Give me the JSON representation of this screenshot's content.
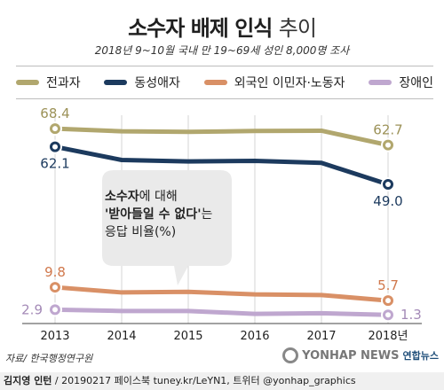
{
  "header": {
    "title_main": "소수자 배제 인식",
    "title_light": "추이",
    "subtitle": "2018년 9~10월 국내 만 19~69세 성인 8,000명 조사"
  },
  "annotation": {
    "part1_bold": "소수자",
    "part1_rest": "에 대해",
    "part2_bold": "'받아들일 수 없다'",
    "part2_rest": "는",
    "part3": "응답 비율(%)"
  },
  "source": "자료/ 한국행정연구원",
  "credit": {
    "author": "김지영 인턴",
    "rest": " / 20190217 페이스북 tuney.kr/LeYN1, 트위터 @yonhap_graphics"
  },
  "logo": {
    "brand": "YONHAP NEWS",
    "brand_kr": "연합뉴스"
  },
  "chart_data": {
    "type": "line",
    "title": "소수자 배제 인식 추이",
    "subtitle": "2018년 9~10월 국내 만 19~69세 성인 8,000명 조사",
    "x": [
      "2013",
      "2014",
      "2015",
      "2016",
      "2017",
      "2018년"
    ],
    "series": [
      {
        "name": "전과자",
        "color": "#b1a76e",
        "values": [
          68.4,
          67.5,
          67.3,
          67.6,
          67.7,
          62.7
        ],
        "labels": {
          "0": "68.4",
          "5": "62.7"
        }
      },
      {
        "name": "동성애자",
        "color": "#1c3a5e",
        "values": [
          62.1,
          57.5,
          57.0,
          57.2,
          56.5,
          49.0
        ],
        "labels": {
          "0": "62.1",
          "5": "49.0"
        }
      },
      {
        "name": "외국인 이민자·노동자",
        "color": "#d99066",
        "values": [
          9.8,
          8.2,
          8.4,
          7.6,
          7.4,
          5.7
        ],
        "labels": {
          "0": "9.8",
          "5": "5.7"
        }
      },
      {
        "name": "장애인",
        "color": "#bfa7cf",
        "values": [
          2.9,
          2.5,
          2.5,
          1.6,
          1.8,
          1.3
        ],
        "labels": {
          "0": "2.9",
          "5": "1.3"
        }
      }
    ],
    "axis_break": true,
    "grid": "vertical"
  }
}
